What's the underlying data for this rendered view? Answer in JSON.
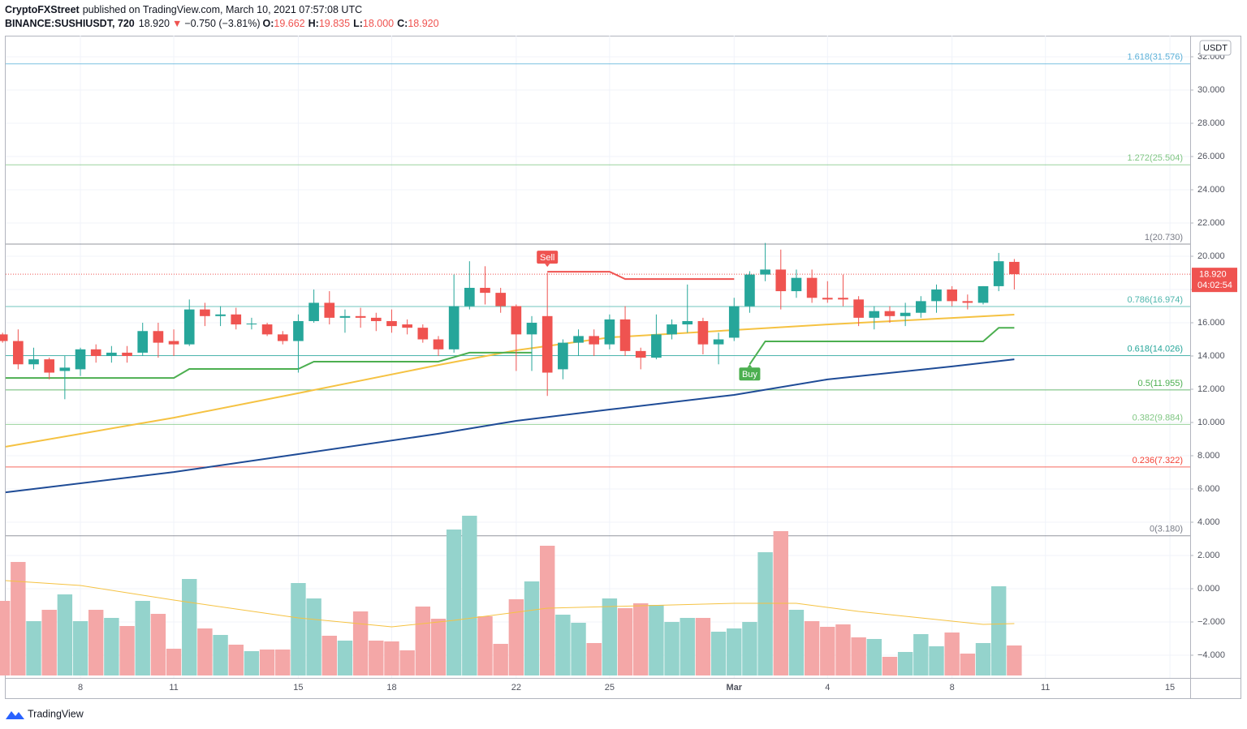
{
  "header": {
    "publisher": "CryptoFXStreet",
    "published": "published on TradingView.com, March 10, 2021 07:57:08 UTC",
    "symbol": "BINANCE:SUSHIUSDT, 720",
    "last": "18.920",
    "arrow": "▼",
    "change": "−0.750 (−3.81%)",
    "ohlc": [
      {
        "key": "O:",
        "value": "19.662"
      },
      {
        "key": "H:",
        "value": "19.835"
      },
      {
        "key": "L:",
        "value": "18.000"
      },
      {
        "key": "C:",
        "value": "18.920"
      }
    ]
  },
  "footer": "TradingView",
  "chart_data": {
    "type": "candlestick",
    "currency": "USDT",
    "xlim": [
      0.2,
      76.3
    ],
    "xticks": [
      {
        "value": 5,
        "label": "8"
      },
      {
        "value": 11,
        "label": "11"
      },
      {
        "value": 19,
        "label": "15"
      },
      {
        "value": 25,
        "label": "18"
      },
      {
        "value": 33,
        "label": "22"
      },
      {
        "value": 39,
        "label": "25"
      },
      {
        "value": 47,
        "label": "Mar"
      },
      {
        "value": 53,
        "label": "4"
      },
      {
        "value": 61,
        "label": "8"
      },
      {
        "value": 67,
        "label": "11"
      },
      {
        "value": 75,
        "label": "15"
      }
    ],
    "ylim": [
      -5.22,
      33.27
    ],
    "yticks": [
      {
        "value": 32,
        "label": "32.000"
      },
      {
        "value": 30,
        "label": "30.000"
      },
      {
        "value": 28,
        "label": "28.000"
      },
      {
        "value": 26,
        "label": "26.000"
      },
      {
        "value": 24,
        "label": "24.000"
      },
      {
        "value": 22,
        "label": "22.000"
      },
      {
        "value": 20,
        "label": "20.000"
      },
      {
        "value": 18,
        "label": "18.000"
      },
      {
        "value": 16,
        "label": "16.000"
      },
      {
        "value": 14,
        "label": "14.000"
      },
      {
        "value": 12,
        "label": "12.000"
      },
      {
        "value": 10,
        "label": "10.000"
      },
      {
        "value": 8,
        "label": "8.000"
      },
      {
        "value": 6,
        "label": "6.000"
      },
      {
        "value": 4,
        "label": "4.000"
      },
      {
        "value": 2,
        "label": "2.000"
      },
      {
        "value": 0,
        "label": "0.000"
      },
      {
        "value": -2,
        "label": "−2.000"
      },
      {
        "value": -4,
        "label": "−4.000"
      }
    ],
    "grid": true,
    "colors": {
      "up": "#26a69a",
      "down": "#ef5350",
      "volume_up": "#94d3cc",
      "volume_down": "#f4a7a7"
    },
    "open": [
      15.3,
      14.9,
      13.5,
      13.8,
      13.1,
      13.2,
      14.4,
      14.0,
      14.2,
      14.2,
      15.5,
      14.9,
      14.7,
      16.8,
      16.4,
      16.5,
      15.9,
      15.9,
      15.3,
      14.9,
      16.1,
      17.2,
      16.3,
      16.4,
      16.3,
      16.1,
      15.9,
      15.7,
      15.0,
      14.4,
      17.0,
      18.1,
      17.8,
      17.0,
      15.3,
      16.4,
      13.2,
      14.8,
      15.2,
      14.7,
      16.2,
      14.3,
      13.9,
      15.3,
      15.9,
      16.1,
      14.7,
      15.1,
      17.0,
      18.9,
      19.2,
      17.9,
      18.7,
      17.5,
      17.5,
      17.4,
      16.3,
      16.7,
      16.4,
      16.6,
      17.3,
      18.0,
      17.3,
      17.2,
      18.2,
      19.662
    ],
    "high": [
      15.4,
      15.6,
      14.5,
      13.9,
      14.0,
      14.5,
      14.7,
      14.6,
      14.6,
      16.0,
      16.0,
      15.6,
      17.4,
      17.2,
      17.0,
      16.9,
      16.3,
      16.0,
      15.5,
      16.5,
      18.0,
      17.9,
      16.8,
      16.9,
      16.6,
      16.8,
      16.2,
      15.9,
      15.2,
      18.9,
      19.7,
      19.4,
      18.1,
      17.1,
      16.4,
      19.0,
      15.0,
      15.6,
      15.6,
      16.5,
      17.0,
      14.5,
      16.5,
      16.2,
      18.3,
      16.3,
      15.4,
      17.5,
      19.1,
      20.8,
      20.4,
      19.2,
      19.2,
      18.5,
      18.9,
      17.6,
      17.0,
      17.0,
      17.2,
      17.6,
      18.3,
      18.2,
      17.7,
      18.2,
      20.2,
      19.835
    ],
    "low": [
      14.8,
      13.2,
      13.2,
      12.6,
      11.4,
      12.8,
      13.6,
      13.6,
      13.6,
      14.0,
      13.9,
      14.0,
      14.6,
      15.8,
      15.8,
      15.6,
      15.6,
      15.2,
      14.7,
      13.0,
      16.0,
      15.9,
      15.4,
      15.7,
      15.5,
      15.4,
      15.3,
      14.8,
      14.0,
      14.2,
      16.8,
      17.1,
      16.6,
      13.1,
      13.1,
      11.6,
      12.6,
      14.0,
      14.0,
      14.4,
      14.0,
      13.2,
      13.8,
      15.0,
      15.4,
      14.1,
      13.5,
      14.9,
      16.6,
      18.5,
      16.8,
      17.5,
      17.2,
      17.2,
      17.0,
      15.8,
      15.6,
      16.0,
      15.8,
      16.3,
      16.6,
      17.0,
      16.8,
      17.1,
      17.9,
      18.0
    ],
    "close": [
      14.9,
      13.5,
      13.8,
      13.0,
      13.3,
      14.4,
      14.0,
      14.2,
      14.0,
      15.5,
      14.8,
      14.7,
      16.8,
      16.4,
      16.5,
      15.9,
      15.95,
      15.3,
      14.9,
      16.1,
      17.2,
      16.3,
      16.4,
      16.3,
      16.1,
      15.8,
      15.7,
      15.0,
      14.4,
      17.0,
      18.1,
      17.8,
      17.0,
      15.3,
      16.0,
      13.0,
      14.8,
      15.2,
      14.7,
      16.2,
      14.3,
      13.9,
      15.3,
      15.9,
      16.1,
      14.7,
      15.0,
      17.0,
      18.9,
      19.2,
      17.9,
      18.7,
      17.5,
      17.4,
      17.4,
      16.3,
      16.7,
      16.4,
      16.6,
      17.3,
      18.0,
      17.3,
      17.2,
      18.2,
      19.7,
      18.92
    ],
    "volume": [
      9.2,
      14,
      6.7,
      8.1,
      10,
      6.7,
      8.1,
      7.1,
      6.1,
      9.2,
      7.6,
      3.3,
      11.9,
      5.8,
      5,
      3.8,
      3,
      3.2,
      3.2,
      11.4,
      9.5,
      4.9,
      4.3,
      7.9,
      4.3,
      4.2,
      3.1,
      8.5,
      7,
      18,
      19.7,
      7.3,
      3.9,
      9.4,
      11.6,
      16,
      7.5,
      6.5,
      4,
      9.5,
      8.3,
      8.9,
      8.7,
      6.6,
      7.1,
      7.1,
      5.4,
      5.8,
      6.6,
      15.2,
      17.8,
      8.1,
      6.7,
      6,
      6.3,
      4.7,
      4.5,
      2.3,
      2.9,
      5.1,
      3.6,
      5.3,
      2.7,
      4,
      11,
      3.7
    ],
    "series": [
      {
        "color": "#f5c242",
        "x": [
          0.2,
          11,
          19,
          28,
          33,
          39,
          47,
          53,
          61,
          65
        ],
        "values": [
          8.54,
          10.29,
          11.76,
          13.46,
          14.34,
          15.12,
          15.56,
          15.9,
          16.29,
          16.49
        ]
      },
      {
        "color": "#1e4b96",
        "x": [
          0.2,
          11,
          19,
          28,
          33,
          39,
          47,
          53,
          61,
          65
        ],
        "values": [
          5.8,
          7.02,
          8.1,
          9.32,
          10.1,
          10.78,
          11.66,
          12.59,
          13.37,
          13.8
        ]
      },
      {
        "color": "#4caf50",
        "x": [
          0.2,
          11,
          12,
          19,
          20,
          28,
          30,
          34,
          41,
          48,
          49,
          63,
          64,
          65
        ],
        "values": [
          12.68,
          12.68,
          13.22,
          13.22,
          13.66,
          13.66,
          14.2,
          14.2,
          null,
          13.5,
          14.88,
          14.88,
          15.7,
          15.7
        ]
      },
      {
        "color": "#ef5350",
        "x": [
          35,
          39,
          40,
          47
        ],
        "values": [
          19.07,
          19.07,
          18.63,
          18.63
        ]
      },
      {
        "color": "#f5c242",
        "pane": "volume",
        "x": [
          0.2,
          5,
          11,
          19,
          25,
          29,
          35,
          39,
          47,
          51,
          55,
          61,
          63,
          65
        ],
        "values": [
          11.7,
          11.1,
          9.3,
          7.1,
          6,
          6.8,
          8.3,
          8.5,
          8.9,
          8.9,
          7.9,
          6.7,
          6.3,
          6.4
        ]
      }
    ],
    "fib_levels": [
      {
        "label": "1.618(31.576)",
        "value": 31.576,
        "color": "#5ab0d8"
      },
      {
        "label": "1.272(25.504)",
        "value": 25.504,
        "color": "#81c784"
      },
      {
        "label": "1(20.730)",
        "value": 20.73,
        "color": "#787b86"
      },
      {
        "label": "0.786(16.974)",
        "value": 16.974,
        "color": "#4db6ac"
      },
      {
        "label": "0.618(14.026)",
        "value": 14.026,
        "color": "#26a69a"
      },
      {
        "label": "0.5(11.955)",
        "value": 11.955,
        "color": "#4caf50"
      },
      {
        "label": "0.382(9.884)",
        "value": 9.884,
        "color": "#81c784"
      },
      {
        "label": "0.236(7.322)",
        "value": 7.322,
        "color": "#f44336"
      },
      {
        "label": "0(3.180)",
        "value": 3.18,
        "color": "#787b86"
      }
    ],
    "annotations": [
      {
        "text": "Sell",
        "x": 35,
        "color": "#ef5350"
      },
      {
        "text": "Buy",
        "x": 48,
        "color": "#4caf50"
      }
    ],
    "price_label": {
      "value": 18.92,
      "label": "18.920",
      "countdown": "04:02:54",
      "color": "#ef5350"
    }
  }
}
